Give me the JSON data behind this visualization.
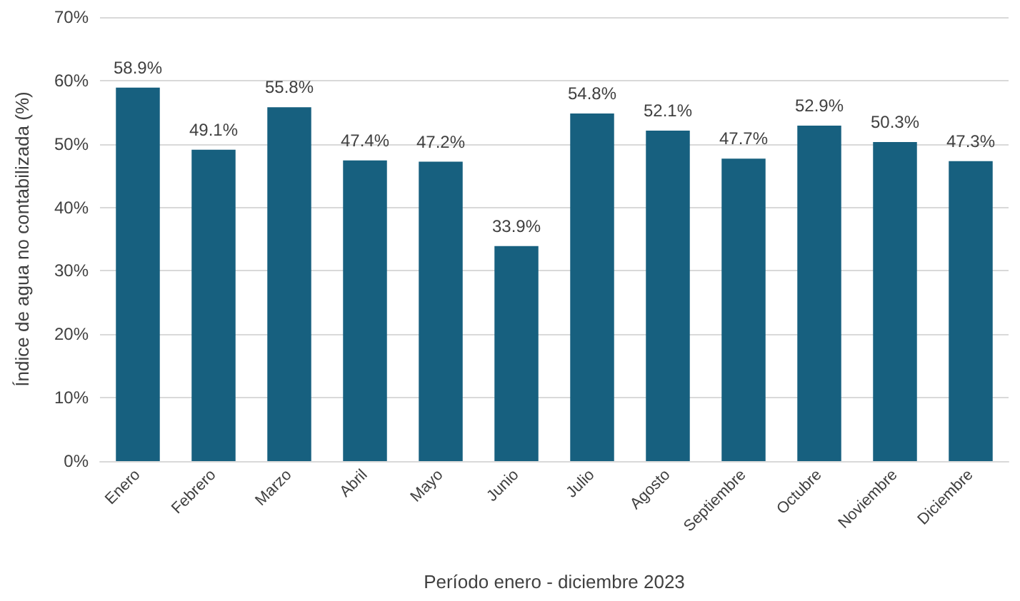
{
  "chart_data": {
    "type": "bar",
    "xlabel": "Período enero - diciembre 2023",
    "ylabel": "Índice de agua no contabilizada (%)",
    "categories": [
      "Enero",
      "Febrero",
      "Marzo",
      "Abril",
      "Mayo",
      "Junio",
      "Julio",
      "Agosto",
      "Septiembre",
      "Octubre",
      "Noviembre",
      "Diciembre"
    ],
    "values": [
      58.9,
      49.1,
      55.8,
      47.4,
      47.2,
      33.9,
      54.8,
      52.1,
      47.7,
      52.9,
      50.3,
      47.3
    ],
    "value_labels": [
      "58.9%",
      "49.1%",
      "55.8%",
      "47.4%",
      "47.2%",
      "33.9%",
      "54.8%",
      "52.1%",
      "47.7%",
      "52.9%",
      "50.3%",
      "47.3%"
    ],
    "color": "#17607f",
    "ylim": [
      0,
      70
    ],
    "yticks": [
      {
        "value": 0,
        "label": "0%"
      },
      {
        "value": 10,
        "label": "10%"
      },
      {
        "value": 20,
        "label": "20%"
      },
      {
        "value": 30,
        "label": "30%"
      },
      {
        "value": 40,
        "label": "40%"
      },
      {
        "value": 50,
        "label": "50%"
      },
      {
        "value": 60,
        "label": "60%"
      },
      {
        "value": 70,
        "label": "70%"
      }
    ],
    "grid": "y"
  }
}
